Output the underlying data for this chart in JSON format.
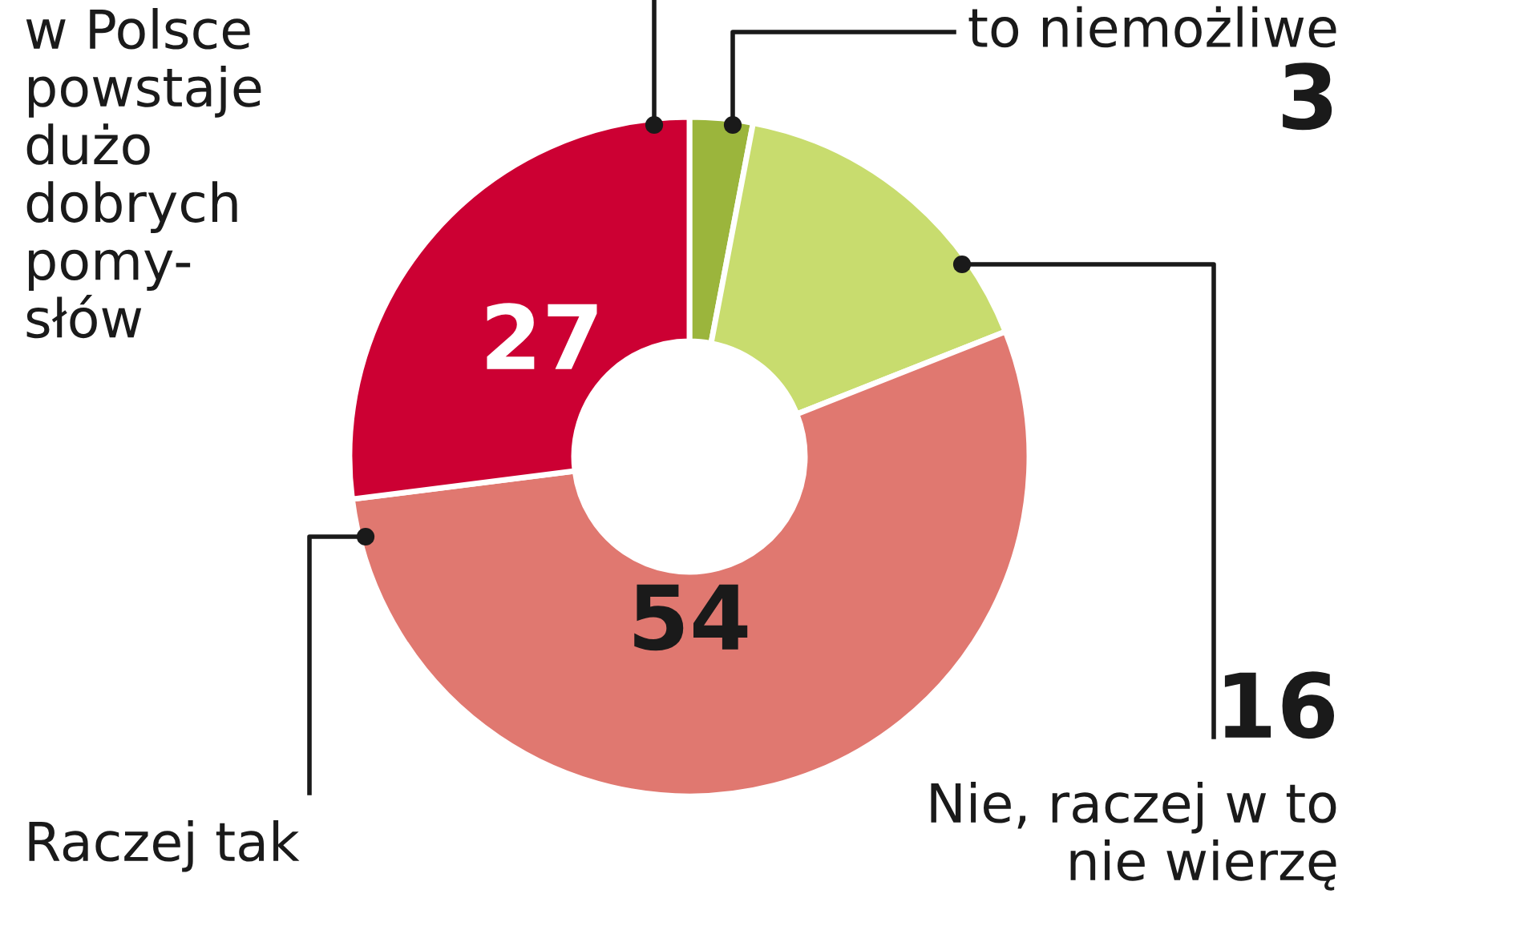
{
  "chart_data": {
    "type": "donut",
    "categories": [
      "to niemożliwe",
      "Nie, raczej w to\nnie wierzę",
      "Raczej tak",
      "w Polsce\npowstaje\ndużo\ndobrych\npomy-\nsłów"
    ],
    "values": [
      3,
      16,
      54,
      27
    ],
    "colors": [
      "#9bb53c",
      "#c8dc6e",
      "#e07870",
      "#cc0033"
    ],
    "data_labels": true
  }
}
